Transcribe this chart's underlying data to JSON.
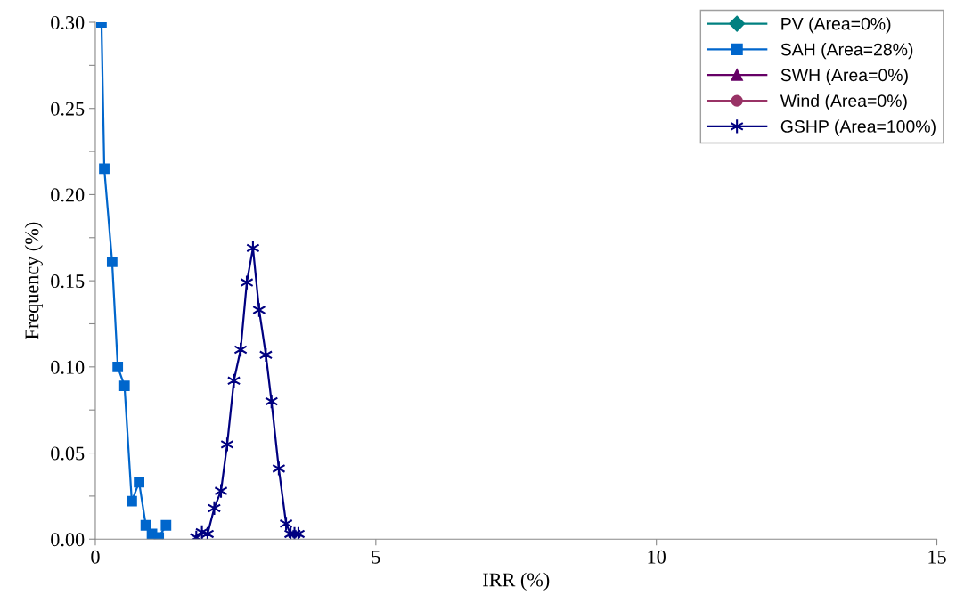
{
  "chart_data": {
    "type": "line",
    "xlabel": "IRR (%)",
    "ylabel": "Frequency (%)",
    "xlim": [
      0,
      15
    ],
    "xticks": [
      0,
      5,
      10,
      15
    ],
    "ylim": [
      0,
      0.3
    ],
    "yticks": [
      {
        "value": 0,
        "label": "0.00"
      },
      {
        "value": 0.025,
        "label": null
      },
      {
        "value": 0.05,
        "label": "0.05"
      },
      {
        "value": 0.075,
        "label": null
      },
      {
        "value": 0.1,
        "label": "0.10"
      },
      {
        "value": 0.125,
        "label": null
      },
      {
        "value": 0.15,
        "label": "0.15"
      },
      {
        "value": 0.175,
        "label": null
      },
      {
        "value": 0.2,
        "label": "0.20"
      },
      {
        "value": 0.225,
        "label": null
      },
      {
        "value": 0.25,
        "label": "0.25"
      },
      {
        "value": 0.275,
        "label": null
      },
      {
        "value": 0.3,
        "label": "0.30"
      }
    ],
    "grid": false,
    "legend": "top right",
    "series": [
      {
        "name": "PV (Area=0%)",
        "color": "#008080",
        "marker": "diamond"
      },
      {
        "name": "SAH (Area=28%)",
        "color": "#0066cc",
        "marker": "square",
        "x": [
          0.11,
          0.16,
          0.3,
          0.4,
          0.52,
          0.65,
          0.78,
          0.9,
          1.01,
          1.13,
          1.26
        ],
        "values": [
          0.3,
          0.215,
          0.161,
          0.1,
          0.089,
          0.022,
          0.033,
          0.008,
          0.003,
          0.001,
          0.008
        ]
      },
      {
        "name": "SWH (Area=0%)",
        "color": "#660066",
        "marker": "triangle"
      },
      {
        "name": "Wind (Area=0%)",
        "color": "#993366",
        "marker": "circle"
      },
      {
        "name": "GSHP (Area=100%)",
        "color": "#000080",
        "marker": "cross",
        "x": [
          1.8,
          1.9,
          2.0,
          2.12,
          2.24,
          2.35,
          2.47,
          2.59,
          2.7,
          2.81,
          2.92,
          3.04,
          3.14,
          3.27,
          3.4,
          3.48,
          3.55,
          3.62
        ],
        "values": [
          0.001,
          0.004,
          0.003,
          0.018,
          0.028,
          0.055,
          0.092,
          0.11,
          0.149,
          0.169,
          0.133,
          0.107,
          0.08,
          0.041,
          0.009,
          0.003,
          0.003,
          0.003
        ]
      }
    ]
  }
}
